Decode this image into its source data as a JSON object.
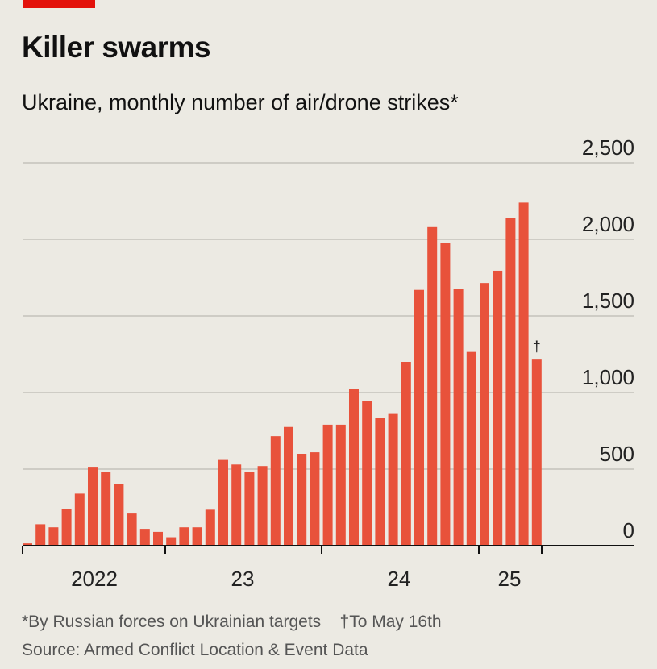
{
  "header": {
    "title": "Killer swarms",
    "subtitle": "Ukraine, monthly number of air/drone strikes*"
  },
  "footer": {
    "note": "*By Russian forces on Ukrainian targets",
    "note2": "†To May 16th",
    "source": "Source: Armed Conflict Location & Event Data"
  },
  "colors": {
    "bar": "#e8523b",
    "brand": "#e3120b"
  },
  "chart_data": {
    "type": "bar",
    "title": "Killer swarms",
    "subtitle": "Ukraine, monthly number of air/drone strikes*",
    "xlabel": "",
    "ylabel": "",
    "ylim": [
      0,
      2500
    ],
    "yticks": [
      0,
      500,
      1000,
      1500,
      2000,
      2500
    ],
    "ytick_labels": [
      "0",
      "500",
      "1,000",
      "1,500",
      "2,000",
      "2,500"
    ],
    "xtick_labels": [
      "2022",
      "23",
      "24",
      "25"
    ],
    "categories": [
      "2022-02",
      "2022-03",
      "2022-04",
      "2022-05",
      "2022-06",
      "2022-07",
      "2022-08",
      "2022-09",
      "2022-10",
      "2022-11",
      "2022-12",
      "2023-01",
      "2023-02",
      "2023-03",
      "2023-04",
      "2023-05",
      "2023-06",
      "2023-07",
      "2023-08",
      "2023-09",
      "2023-10",
      "2023-11",
      "2023-12",
      "2024-01",
      "2024-02",
      "2024-03",
      "2024-04",
      "2024-05",
      "2024-06",
      "2024-07",
      "2024-08",
      "2024-09",
      "2024-10",
      "2024-11",
      "2024-12",
      "2025-01",
      "2025-02",
      "2025-03",
      "2025-04",
      "2025-05"
    ],
    "values": [
      15,
      140,
      120,
      240,
      340,
      510,
      480,
      400,
      210,
      110,
      90,
      55,
      120,
      120,
      235,
      560,
      530,
      480,
      520,
      715,
      775,
      600,
      610,
      790,
      790,
      1025,
      945,
      835,
      860,
      1200,
      1670,
      2080,
      1975,
      1675,
      1265,
      1715,
      1795,
      2140,
      2240,
      1215
    ],
    "annotations": [
      {
        "category": "2025-05",
        "text": "†"
      }
    ],
    "grid": true
  }
}
